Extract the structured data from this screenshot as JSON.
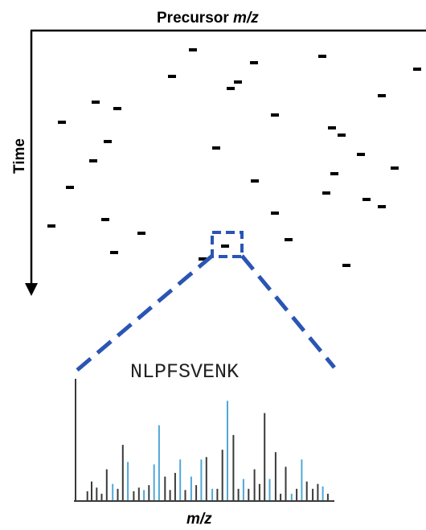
{
  "colors": {
    "axis": "#000000",
    "feature": "#000000",
    "zoom_box": "#2a55b4",
    "zoom_lines": "#2a55b4",
    "peak_dark": "#3a3a3a",
    "peak_blue": "#4fa8d8"
  },
  "precursor_map": {
    "x_axis_title_main": "Precursor ",
    "x_axis_title_italic": "m/z",
    "y_axis_title": "Time",
    "feature_count": 44
  },
  "spectrum": {
    "peptide": "NLPFSVENK",
    "x_axis_title": "m/z",
    "peaks": [
      {
        "x": 0,
        "h": 1.0,
        "c": "dark"
      },
      {
        "x": 0.14,
        "h": 0.08,
        "c": "dark"
      },
      {
        "x": 0.19,
        "h": 0.16,
        "c": "dark"
      },
      {
        "x": 0.25,
        "h": 0.11,
        "c": "dark"
      },
      {
        "x": 0.31,
        "h": 0.06,
        "c": "dark"
      },
      {
        "x": 0.37,
        "h": 0.26,
        "c": "dark"
      },
      {
        "x": 0.44,
        "h": 0.14,
        "c": "blue"
      },
      {
        "x": 0.5,
        "h": 0.1,
        "c": "dark"
      },
      {
        "x": 0.56,
        "h": 0.46,
        "c": "dark"
      },
      {
        "x": 0.62,
        "h": 0.32,
        "c": "blue"
      },
      {
        "x": 0.69,
        "h": 0.08,
        "c": "dark"
      },
      {
        "x": 0.75,
        "h": 0.11,
        "c": "dark"
      },
      {
        "x": 0.81,
        "h": 0.09,
        "c": "blue"
      },
      {
        "x": 0.87,
        "h": 0.13,
        "c": "dark"
      },
      {
        "x": 0.93,
        "h": 0.3,
        "c": "blue"
      },
      {
        "x": 0.99,
        "h": 0.62,
        "c": "blue"
      },
      {
        "x": 1.06,
        "h": 0.2,
        "c": "dark"
      },
      {
        "x": 1.12,
        "h": 0.09,
        "c": "dark"
      },
      {
        "x": 1.18,
        "h": 0.23,
        "c": "dark"
      },
      {
        "x": 1.24,
        "h": 0.34,
        "c": "blue"
      },
      {
        "x": 1.3,
        "h": 0.09,
        "c": "dark"
      },
      {
        "x": 1.37,
        "h": 0.2,
        "c": "blue"
      },
      {
        "x": 1.43,
        "h": 0.13,
        "c": "dark"
      },
      {
        "x": 1.49,
        "h": 0.34,
        "c": "blue"
      },
      {
        "x": 1.55,
        "h": 0.36,
        "c": "dark"
      },
      {
        "x": 1.62,
        "h": 0.1,
        "c": "blue"
      },
      {
        "x": 1.68,
        "h": 0.1,
        "c": "dark"
      },
      {
        "x": 1.74,
        "h": 0.42,
        "c": "dark"
      },
      {
        "x": 1.8,
        "h": 0.82,
        "c": "blue"
      },
      {
        "x": 1.87,
        "h": 0.54,
        "c": "dark"
      },
      {
        "x": 1.93,
        "h": 0.1,
        "c": "dark"
      },
      {
        "x": 1.99,
        "h": 0.18,
        "c": "blue"
      },
      {
        "x": 2.05,
        "h": 0.1,
        "c": "dark"
      },
      {
        "x": 2.12,
        "h": 0.26,
        "c": "dark"
      },
      {
        "x": 2.18,
        "h": 0.14,
        "c": "dark"
      },
      {
        "x": 2.24,
        "h": 0.72,
        "c": "dark"
      },
      {
        "x": 2.3,
        "h": 0.18,
        "c": "blue"
      },
      {
        "x": 2.37,
        "h": 0.4,
        "c": "dark"
      },
      {
        "x": 2.43,
        "h": 0.06,
        "c": "dark"
      },
      {
        "x": 2.49,
        "h": 0.28,
        "c": "dark"
      },
      {
        "x": 2.56,
        "h": 0.06,
        "c": "blue"
      },
      {
        "x": 2.62,
        "h": 0.1,
        "c": "dark"
      },
      {
        "x": 2.68,
        "h": 0.34,
        "c": "blue"
      },
      {
        "x": 2.74,
        "h": 0.16,
        "c": "dark"
      },
      {
        "x": 2.81,
        "h": 0.1,
        "c": "dark"
      },
      {
        "x": 2.87,
        "h": 0.14,
        "c": "dark"
      },
      {
        "x": 2.93,
        "h": 0.12,
        "c": "blue"
      },
      {
        "x": 2.99,
        "h": 0.06,
        "c": "dark"
      }
    ]
  }
}
